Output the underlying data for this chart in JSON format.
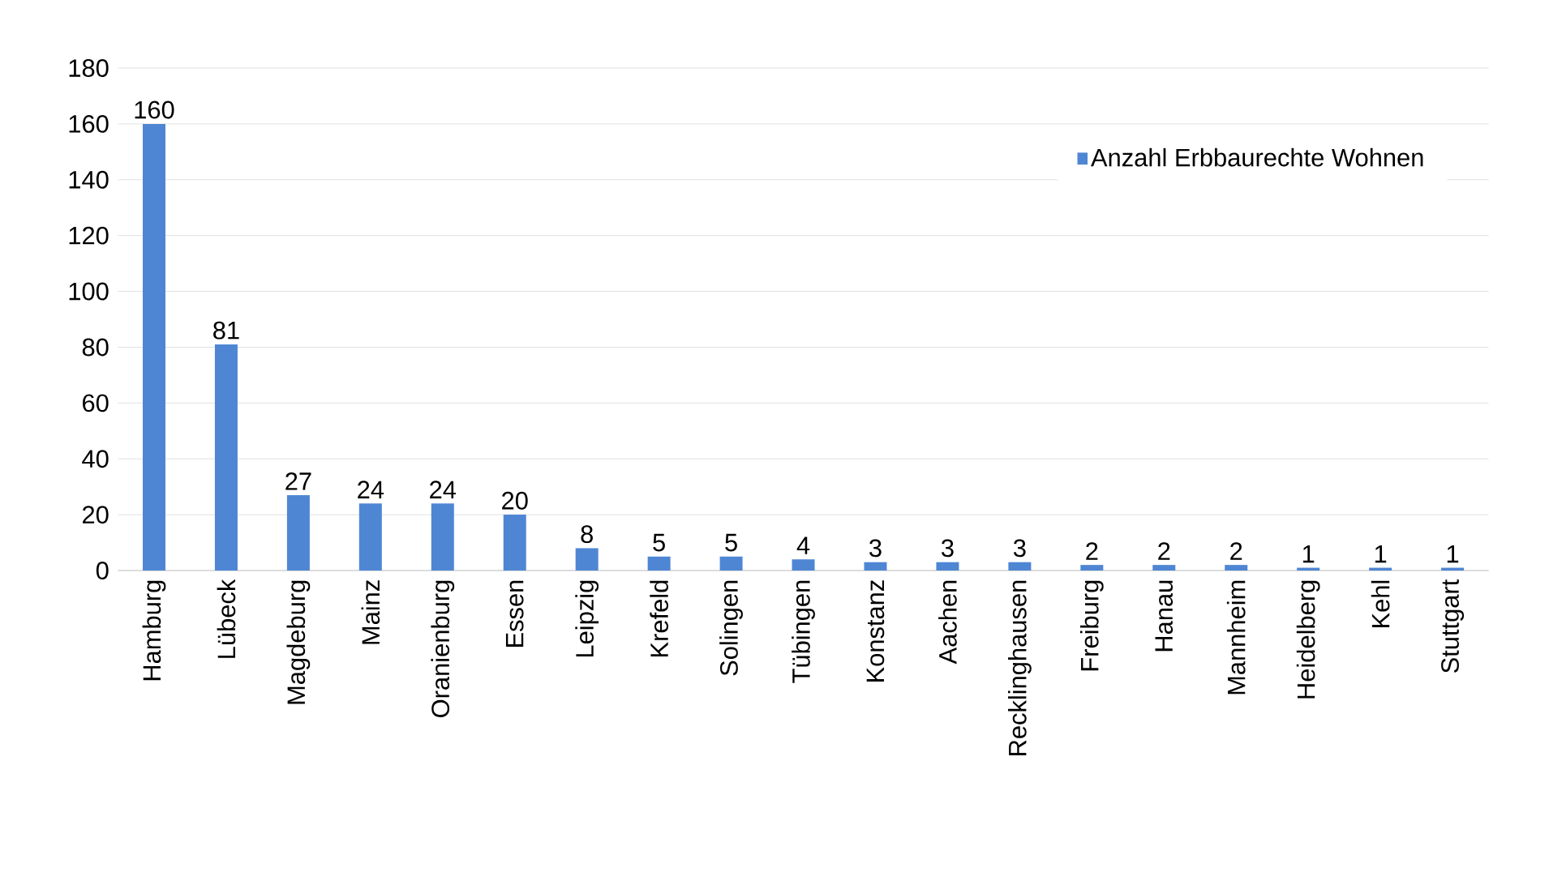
{
  "chart_data": {
    "type": "bar",
    "categories": [
      "Hamburg",
      "Lübeck",
      "Magdeburg",
      "Mainz",
      "Oranienburg",
      "Essen",
      "Leipzig",
      "Krefeld",
      "Solingen",
      "Tübingen",
      "Konstanz",
      "Aachen",
      "Recklinghausen",
      "Freiburg",
      "Hanau",
      "Mannheim",
      "Heidelberg",
      "Kehl",
      "Stuttgart"
    ],
    "series": [
      {
        "name": "Anzahl Erbbaurechte Wohnen",
        "color": "#4f86d4",
        "values": [
          160,
          81,
          27,
          24,
          24,
          20,
          8,
          5,
          5,
          4,
          3,
          3,
          3,
          2,
          2,
          2,
          1,
          1,
          1
        ]
      }
    ],
    "ylim": [
      0,
      180
    ],
    "yticks": [
      0,
      20,
      40,
      60,
      80,
      100,
      120,
      140,
      160,
      180
    ],
    "grid": "y",
    "legend": "top right",
    "data_labels": true
  }
}
